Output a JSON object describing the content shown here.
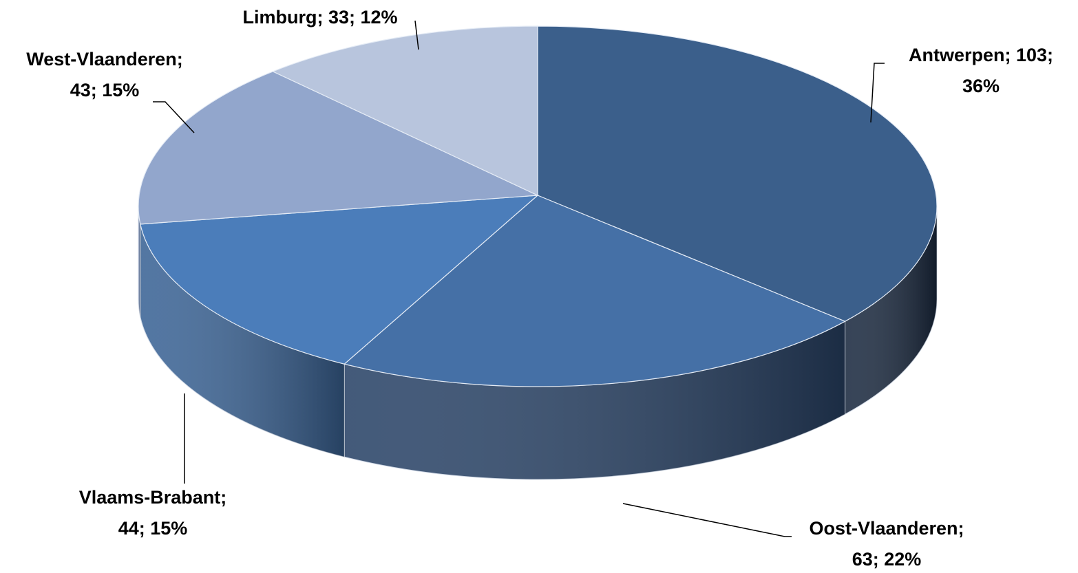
{
  "chart_data": {
    "type": "pie3d",
    "categories": [
      "Antwerpen",
      "Oost-Vlaanderen",
      "Vlaams-Brabant",
      "West-Vlaanderen",
      "Limburg"
    ],
    "values": [
      103,
      63,
      44,
      43,
      33
    ],
    "value_labels": [
      [
        "Antwerpen; 103;",
        "36%"
      ],
      [
        "Oost-Vlaanderen;",
        "63; 22%"
      ],
      [
        "Vlaams-Brabant;",
        "44; 15%"
      ],
      [
        "West-Vlaanderen;",
        "43; 15%"
      ],
      [
        "Limburg; 33; 12%"
      ]
    ],
    "colors": [
      "#3b5f8b",
      "#4570a6",
      "#4b7dba",
      "#92a6cc",
      "#b8c5dd"
    ],
    "side_colors": [
      "#1b2a40",
      "#2a4468",
      "#3b6496",
      "#6f87b0",
      "#8c9cbc"
    ]
  }
}
